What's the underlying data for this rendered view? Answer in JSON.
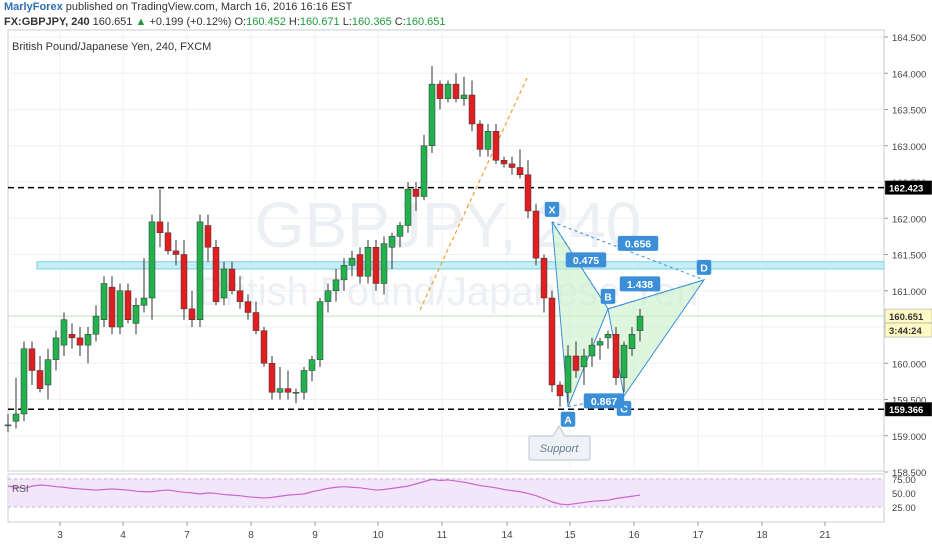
{
  "header": {
    "author": "MarlyForex",
    "published_text": "published on TradingView.com, March 16, 2016 16:16 EST",
    "symbol": "FX:GBPJPY, 240",
    "last": "160.651",
    "change_arrow": "▲",
    "change": "+0.199 (+0.12%)",
    "o_label": "O:",
    "o_value": "160.452",
    "h_label": "H:",
    "h_value": "160.671",
    "l_label": "L:",
    "l_value": "160.365",
    "c_label": "C:",
    "c_value": "160.651"
  },
  "pane_title": "British Pound/Japanese Yen, 240, FXCM",
  "watermark": {
    "line1": "GBPJPY, 240",
    "line2": "British Pound/Japanese Yen"
  },
  "colors": {
    "up": "#22b14c",
    "down": "#e02020",
    "grid": "#eef1f5",
    "level": "#000000",
    "zone": "#c6eef5",
    "pattern": "#3a8fd8",
    "pattern_fill": "#c8f0c8",
    "trend": "#f0a030",
    "rsi": "#cc66cc",
    "rsi_band": "#f2e6fa",
    "price_tag": "#fff9c4",
    "ma": "#b9e6b9"
  },
  "chart_data": {
    "type": "candlestick",
    "title": "British Pound/Japanese Yen, 240, FXCM",
    "x_tick_labels": [
      "3",
      "4",
      "7",
      "8",
      "9",
      "10",
      "11",
      "14",
      "15",
      "16",
      "17",
      "18",
      "21"
    ],
    "y_tick_labels": [
      "164.500",
      "164.000",
      "163.500",
      "163.000",
      "162.500",
      "162.000",
      "161.500",
      "161.000",
      "160.500",
      "160.000",
      "159.500",
      "159.000",
      "158.500"
    ],
    "ylim": [
      158.5,
      164.5
    ],
    "candles": [
      [
        159.15,
        159.3,
        159.05,
        159.15
      ],
      [
        159.2,
        159.8,
        159.1,
        159.3
      ],
      [
        159.3,
        160.3,
        159.2,
        160.2
      ],
      [
        160.2,
        160.3,
        159.7,
        159.9
      ],
      [
        159.9,
        160.1,
        159.6,
        159.65
      ],
      [
        159.7,
        160.2,
        159.5,
        160.05
      ],
      [
        160.05,
        160.45,
        159.9,
        160.35
      ],
      [
        160.25,
        160.7,
        160.1,
        160.6
      ],
      [
        160.4,
        160.55,
        160.2,
        160.35
      ],
      [
        160.35,
        160.5,
        160.1,
        160.25
      ],
      [
        160.25,
        160.5,
        160.0,
        160.4
      ],
      [
        160.4,
        160.8,
        160.3,
        160.65
      ],
      [
        160.6,
        161.2,
        160.5,
        161.1
      ],
      [
        161.05,
        161.2,
        160.4,
        160.5
      ],
      [
        160.5,
        161.1,
        160.4,
        161.0
      ],
      [
        161.0,
        161.1,
        160.55,
        160.6
      ],
      [
        160.55,
        160.9,
        160.4,
        160.8
      ],
      [
        160.8,
        161.45,
        160.7,
        160.9
      ],
      [
        160.9,
        162.05,
        160.6,
        161.95
      ],
      [
        161.95,
        162.4,
        161.6,
        161.8
      ],
      [
        161.8,
        161.95,
        161.5,
        161.55
      ],
      [
        161.55,
        161.7,
        161.35,
        161.5
      ],
      [
        161.5,
        161.7,
        160.6,
        160.75
      ],
      [
        160.75,
        161.0,
        160.5,
        160.6
      ],
      [
        160.6,
        162.05,
        160.5,
        161.95
      ],
      [
        161.9,
        162.05,
        161.4,
        161.6
      ],
      [
        161.6,
        161.7,
        160.8,
        160.85
      ],
      [
        160.9,
        161.4,
        160.8,
        161.3
      ],
      [
        161.3,
        161.4,
        160.95,
        161.0
      ],
      [
        161.0,
        161.2,
        160.75,
        160.85
      ],
      [
        160.85,
        160.95,
        160.6,
        160.7
      ],
      [
        160.7,
        160.85,
        160.4,
        160.45
      ],
      [
        160.45,
        160.5,
        159.95,
        160.0
      ],
      [
        160.0,
        160.1,
        159.5,
        159.6
      ],
      [
        159.6,
        159.95,
        159.5,
        159.65
      ],
      [
        159.65,
        159.9,
        159.5,
        159.6
      ],
      [
        159.6,
        159.65,
        159.45,
        159.6
      ],
      [
        159.6,
        159.95,
        159.5,
        159.9
      ],
      [
        159.9,
        160.1,
        159.75,
        160.05
      ],
      [
        160.05,
        160.9,
        159.95,
        160.85
      ],
      [
        160.85,
        161.1,
        160.7,
        161.0
      ],
      [
        161.0,
        161.3,
        160.85,
        161.15
      ],
      [
        161.15,
        161.45,
        161.0,
        161.35
      ],
      [
        161.35,
        161.55,
        161.2,
        161.45
      ],
      [
        161.5,
        161.6,
        161.1,
        161.2
      ],
      [
        161.2,
        161.7,
        161.1,
        161.6
      ],
      [
        161.6,
        161.7,
        161.0,
        161.1
      ],
      [
        161.1,
        161.75,
        160.95,
        161.65
      ],
      [
        161.6,
        161.8,
        161.3,
        161.75
      ],
      [
        161.75,
        161.95,
        161.6,
        161.9
      ],
      [
        161.9,
        162.5,
        161.8,
        162.4
      ],
      [
        162.4,
        162.5,
        162.1,
        162.3
      ],
      [
        162.3,
        163.15,
        162.25,
        163.0
      ],
      [
        163.0,
        164.1,
        162.9,
        163.85
      ],
      [
        163.85,
        163.9,
        163.5,
        163.65
      ],
      [
        163.65,
        163.9,
        163.6,
        163.85
      ],
      [
        163.85,
        164.0,
        163.6,
        163.65
      ],
      [
        163.65,
        163.95,
        163.55,
        163.7
      ],
      [
        163.7,
        163.9,
        163.2,
        163.3
      ],
      [
        163.3,
        163.35,
        162.85,
        162.95
      ],
      [
        162.95,
        163.3,
        162.85,
        163.2
      ],
      [
        163.2,
        163.3,
        162.75,
        162.8
      ],
      [
        162.8,
        162.85,
        162.7,
        162.75
      ],
      [
        162.75,
        162.85,
        162.6,
        162.7
      ],
      [
        162.7,
        162.95,
        162.55,
        162.6
      ],
      [
        162.6,
        162.8,
        162.0,
        162.1
      ],
      [
        162.1,
        162.2,
        161.35,
        161.45
      ],
      [
        161.45,
        161.5,
        160.7,
        160.9
      ],
      [
        160.9,
        161.0,
        159.6,
        159.7
      ],
      [
        159.7,
        159.75,
        159.4,
        159.55
      ],
      [
        159.6,
        160.25,
        159.45,
        160.1
      ],
      [
        160.1,
        160.3,
        159.8,
        159.9
      ],
      [
        159.95,
        160.2,
        159.7,
        160.1
      ],
      [
        160.1,
        160.35,
        159.95,
        160.25
      ],
      [
        160.25,
        160.35,
        160.05,
        160.3
      ],
      [
        160.35,
        160.45,
        160.2,
        160.4
      ],
      [
        160.4,
        160.5,
        159.7,
        159.8
      ],
      [
        159.8,
        160.3,
        159.6,
        160.25
      ],
      [
        160.2,
        160.5,
        160.1,
        160.4
      ],
      [
        160.45,
        160.75,
        160.3,
        160.65
      ]
    ],
    "levels": [
      {
        "value": 162.423,
        "label": "162.423"
      },
      {
        "value": 159.366,
        "label": "159.366"
      }
    ],
    "last_price": {
      "value": 160.651,
      "label": "160.651",
      "countdown": "3:44:24"
    },
    "zone": [
      161.3,
      161.4
    ],
    "pattern": {
      "points": [
        {
          "name": "X",
          "x": 68,
          "y": 161.95
        },
        {
          "name": "A",
          "x": 70,
          "y": 159.4
        },
        {
          "name": "B",
          "x": 75,
          "y": 160.75
        },
        {
          "name": "C",
          "x": 77,
          "y": 159.55
        },
        {
          "name": "D",
          "x": 87,
          "y": 161.15
        }
      ],
      "ratios": [
        "0.475",
        "0.656",
        "0.867",
        "1.438"
      ]
    },
    "annotation": "Support",
    "rsi": {
      "label": "RSI",
      "tick_labels": [
        "75.00",
        "50.00",
        "25.00"
      ],
      "values": [
        62,
        60,
        58,
        62,
        64,
        63,
        61,
        60,
        58,
        57,
        56,
        55,
        56,
        57,
        56,
        55,
        53,
        52,
        52,
        54,
        55,
        53,
        51,
        50,
        48,
        50,
        49,
        47,
        46,
        45,
        43,
        42,
        41,
        42,
        44,
        46,
        47,
        48,
        52,
        55,
        58,
        60,
        61,
        60,
        59,
        57,
        55,
        56,
        58,
        60,
        62,
        66,
        70,
        74,
        72,
        73,
        71,
        69,
        66,
        63,
        61,
        59,
        56,
        54,
        52,
        49,
        45,
        40,
        34,
        30,
        29,
        31,
        33,
        35,
        36,
        37,
        40,
        42,
        44,
        46
      ]
    }
  }
}
